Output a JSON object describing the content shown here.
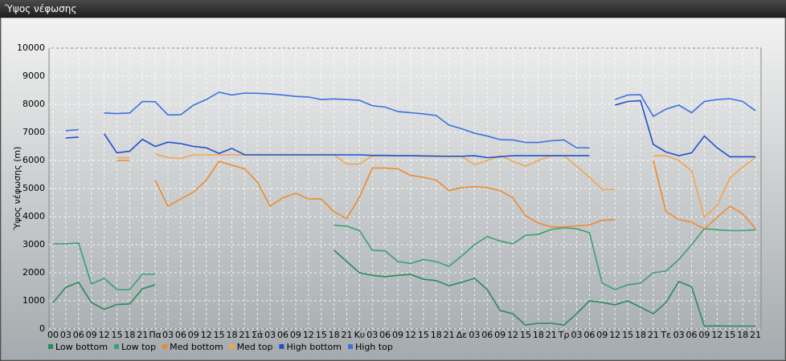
{
  "title": "Ύψος νέφωσης",
  "chart_data": {
    "type": "line",
    "y_label": "Ύψος νέφωσης (m)",
    "categories": [
      "00",
      "03",
      "06",
      "09",
      "12",
      "15",
      "18",
      "21",
      "Πα",
      "03",
      "06",
      "09",
      "12",
      "15",
      "18",
      "21",
      "Σά",
      "03",
      "06",
      "09",
      "12",
      "15",
      "18",
      "21",
      "Κυ",
      "03",
      "06",
      "09",
      "12",
      "15",
      "18",
      "21",
      "Δε",
      "03",
      "06",
      "09",
      "12",
      "15",
      "18",
      "21",
      "Τρ",
      "03",
      "06",
      "09",
      "12",
      "15",
      "18",
      "21",
      "Τε",
      "03",
      "06",
      "09",
      "12",
      "15",
      "18",
      "21"
    ],
    "ylim": [
      0,
      10000
    ],
    "yticks": [
      0,
      1000,
      2000,
      3000,
      4000,
      5000,
      6000,
      7000,
      8000,
      9000,
      10000
    ],
    "grid": true,
    "series": [
      {
        "name": "Low bottom",
        "color": "#2a8a5a",
        "values": [
          940,
          1480,
          1660,
          940,
          700,
          870,
          890,
          1430,
          1570,
          null,
          null,
          null,
          null,
          null,
          null,
          null,
          null,
          null,
          null,
          null,
          null,
          null,
          2800,
          2400,
          2000,
          1910,
          1860,
          1910,
          1940,
          1770,
          1720,
          1540,
          1660,
          1800,
          1400,
          660,
          540,
          140,
          200,
          200,
          140,
          540,
          1000,
          940,
          860,
          1000,
          770,
          540,
          940,
          1690,
          1500,
          100,
          110,
          100,
          100,
          100
        ]
      },
      {
        "name": "Low top",
        "color": "#3aa070",
        "values": [
          3030,
          3030,
          3060,
          1600,
          1800,
          1400,
          1400,
          1950,
          1950,
          null,
          null,
          null,
          null,
          null,
          null,
          null,
          null,
          null,
          null,
          null,
          null,
          null,
          3690,
          3660,
          3500,
          2800,
          2780,
          2400,
          2330,
          2470,
          2400,
          2230,
          2600,
          3000,
          3290,
          3130,
          3030,
          3330,
          3370,
          3540,
          3600,
          3570,
          3430,
          1630,
          1400,
          1570,
          1630,
          2000,
          2060,
          2470,
          3000,
          3570,
          3530,
          3500,
          3500,
          3530
        ]
      },
      {
        "name": "Med bottom",
        "color": "#ee8a2e",
        "values": [
          null,
          null,
          null,
          null,
          null,
          6000,
          6000,
          null,
          5300,
          4370,
          4630,
          4870,
          5300,
          5970,
          5830,
          5700,
          5230,
          4370,
          4670,
          4830,
          4630,
          4630,
          4170,
          3930,
          4700,
          5730,
          5730,
          5700,
          5470,
          5400,
          5300,
          4930,
          5030,
          5070,
          5030,
          4930,
          4670,
          4030,
          3770,
          3630,
          3630,
          3670,
          3700,
          3870,
          3900,
          null,
          null,
          6000,
          4170,
          3900,
          3800,
          3570,
          3970,
          4370,
          4100,
          3570
        ]
      },
      {
        "name": "Med top",
        "color": "#f4a452",
        "values": [
          null,
          null,
          null,
          null,
          null,
          6100,
          6100,
          null,
          6230,
          6100,
          6070,
          6200,
          6200,
          6200,
          6200,
          6200,
          6200,
          6200,
          6200,
          6200,
          6200,
          6200,
          6200,
          5870,
          5870,
          6170,
          6170,
          6170,
          6170,
          6170,
          6170,
          6140,
          6140,
          5850,
          6000,
          6170,
          5970,
          5800,
          6000,
          6170,
          6170,
          5800,
          5400,
          4970,
          4970,
          null,
          null,
          6170,
          6170,
          6000,
          5630,
          3970,
          4400,
          5370,
          5770,
          6100
        ]
      },
      {
        "name": "High bottom",
        "color": "#2050cc",
        "values": [
          null,
          6800,
          6830,
          null,
          6950,
          6270,
          6330,
          6750,
          6500,
          6650,
          6600,
          6500,
          6450,
          6250,
          6430,
          6200,
          6200,
          6200,
          6200,
          6200,
          6200,
          6200,
          6200,
          6200,
          6200,
          6180,
          6180,
          6170,
          6170,
          6160,
          6150,
          6150,
          6150,
          6170,
          6100,
          6130,
          6170,
          6170,
          6170,
          6170,
          6170,
          6170,
          6170,
          null,
          7970,
          8100,
          8130,
          6570,
          6300,
          6170,
          6270,
          6870,
          6450,
          6130,
          6130,
          6130
        ]
      },
      {
        "name": "High top",
        "color": "#3a72e0",
        "values": [
          null,
          7060,
          7100,
          null,
          7690,
          7670,
          7690,
          8100,
          8090,
          7620,
          7630,
          7970,
          8170,
          8430,
          8330,
          8400,
          8390,
          8370,
          8330,
          8280,
          8260,
          8170,
          8190,
          8170,
          8140,
          7950,
          7900,
          7740,
          7700,
          7660,
          7600,
          7260,
          7130,
          6970,
          6870,
          6740,
          6730,
          6640,
          6640,
          6700,
          6730,
          6450,
          6450,
          null,
          8170,
          8330,
          8340,
          7570,
          7830,
          7970,
          7700,
          8100,
          8170,
          8200,
          8100,
          7770
        ]
      }
    ]
  }
}
